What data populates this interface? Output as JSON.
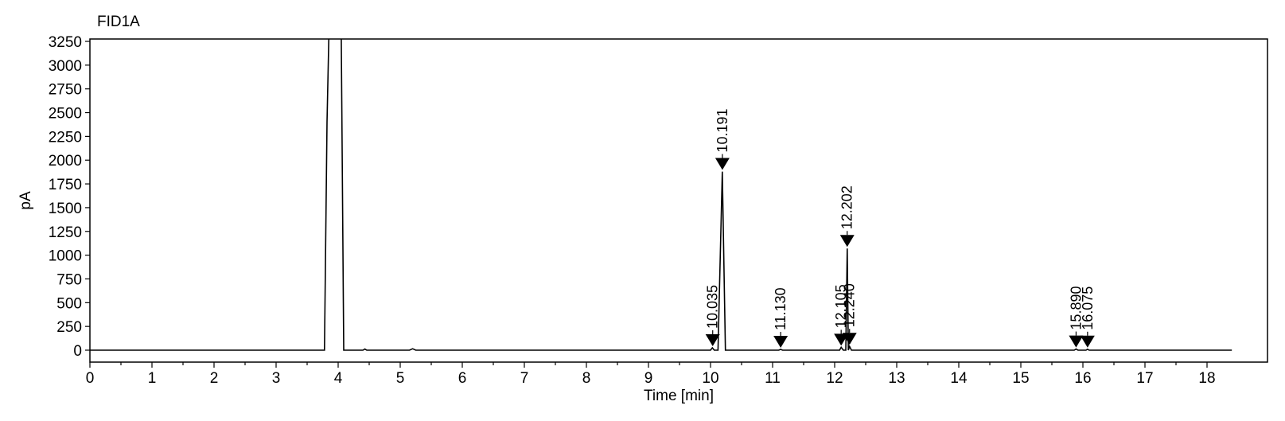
{
  "chart_data": {
    "type": "line",
    "signal_label": "FID1A",
    "xlabel": "Time [min]",
    "ylabel": "pA",
    "xlim": [
      0,
      18.4
    ],
    "ylim": [
      -50,
      3300
    ],
    "x_ticks": [
      0,
      1,
      2,
      3,
      4,
      5,
      6,
      7,
      8,
      9,
      10,
      11,
      12,
      13,
      14,
      15,
      16,
      17,
      18
    ],
    "y_ticks": [
      0,
      250,
      500,
      750,
      1000,
      1250,
      1500,
      1750,
      2000,
      2250,
      2500,
      2750,
      3000,
      3250
    ],
    "grid": false,
    "series": [
      {
        "x": [
          0,
          3.78,
          3.82,
          3.85,
          4.05,
          4.09,
          4.13,
          4.4,
          4.43,
          4.46,
          5.15,
          5.2,
          5.25,
          10.0,
          10.03,
          10.06,
          10.12,
          10.19,
          10.24,
          10.3,
          11.1,
          11.13,
          11.16,
          12.08,
          12.105,
          12.14,
          12.18,
          12.202,
          12.22,
          12.24,
          12.27,
          15.86,
          15.89,
          15.92,
          16.05,
          16.075,
          16.1,
          18.4
        ],
        "y": [
          0,
          0,
          2400,
          3300,
          3300,
          0,
          0,
          0,
          12,
          0,
          0,
          15,
          0,
          0,
          25,
          0,
          0,
          1880,
          0,
          0,
          0,
          8,
          0,
          0,
          30,
          0,
          0,
          1070,
          0,
          40,
          0,
          0,
          12,
          0,
          0,
          10,
          0,
          0
        ]
      }
    ],
    "peaks": [
      {
        "label": "10.035",
        "x": 10.035,
        "y": 25
      },
      {
        "label": "10.191",
        "x": 10.191,
        "y": 1880
      },
      {
        "label": "11.130",
        "x": 11.13,
        "y": 8
      },
      {
        "label": "12.105",
        "x": 12.105,
        "y": 30
      },
      {
        "label": "12.202",
        "x": 12.202,
        "y": 1070
      },
      {
        "label": "12.240",
        "x": 12.24,
        "y": 40
      },
      {
        "label": "15.890",
        "x": 15.89,
        "y": 12
      },
      {
        "label": "16.075",
        "x": 16.075,
        "y": 10
      }
    ]
  }
}
